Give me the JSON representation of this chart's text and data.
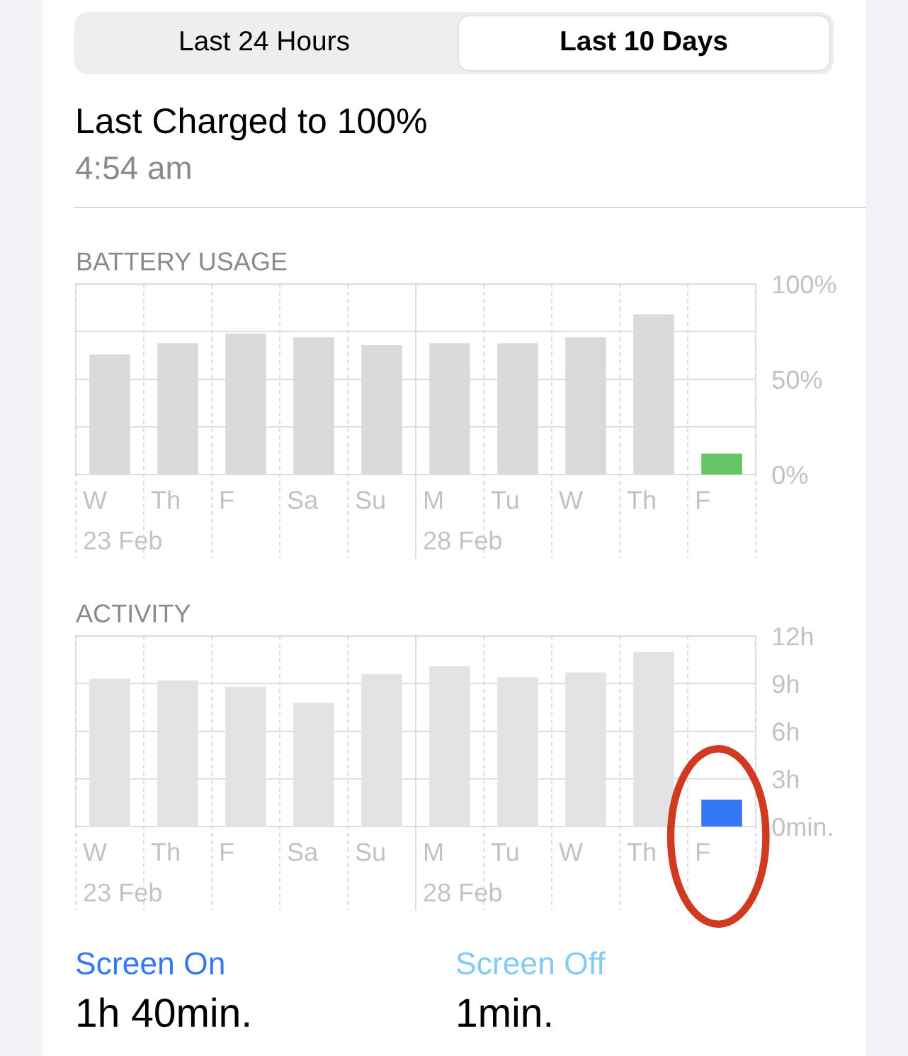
{
  "chart_data": [
    {
      "type": "other",
      "title": "Last Charged to 100%",
      "subtitle": "4:54 am",
      "annotations": [
        "Last 24 Hours",
        "Last 10 Days"
      ]
    },
    {
      "type": "bar",
      "title": "BATTERY USAGE",
      "categories": [
        "W\n23 Feb",
        "Th",
        "F",
        "Sa",
        "Su",
        "M\n28 Feb",
        "Tu",
        "W",
        "Th",
        "F"
      ],
      "values": [
        63,
        69,
        74,
        72,
        68,
        69,
        69,
        72,
        84,
        11
      ],
      "colors": [
        "#dadada",
        "#dadada",
        "#dadada",
        "#dadada",
        "#dadada",
        "#dadada",
        "#dadada",
        "#dadada",
        "#dadada",
        "#65c466"
      ],
      "ylim": [
        0,
        100
      ],
      "yticks": [
        {
          "value": 0,
          "label": "0%"
        },
        {
          "value": 25,
          "label": null
        },
        {
          "value": 50,
          "label": "50%"
        },
        {
          "value": 75,
          "label": null
        },
        {
          "value": 100,
          "label": "100%"
        }
      ],
      "grid": true
    },
    {
      "type": "bar",
      "title": "ACTIVITY",
      "categories": [
        "W\n23 Feb",
        "Th",
        "F",
        "Sa",
        "Su",
        "M\n28 Feb",
        "Tu",
        "W",
        "Th",
        "F"
      ],
      "values": [
        9.3,
        9.2,
        8.8,
        7.8,
        9.6,
        10.1,
        9.4,
        9.7,
        11,
        1.7
      ],
      "colors": [
        "#e3e3e3",
        "#e3e3e3",
        "#e3e3e3",
        "#e3e3e3",
        "#e3e3e3",
        "#e3e3e3",
        "#e3e3e3",
        "#e3e3e3",
        "#e3e3e3",
        "#3478f6"
      ],
      "ylim": [
        0,
        12
      ],
      "yticks": [
        {
          "value": 0,
          "label": "0min."
        },
        {
          "value": 3,
          "label": "3h"
        },
        {
          "value": 6,
          "label": "6h"
        },
        {
          "value": 9,
          "label": "9h"
        },
        {
          "value": 12,
          "label": "12h"
        }
      ],
      "grid": true
    },
    {
      "type": "other",
      "categories": [
        "Screen On",
        "Screen Off"
      ],
      "colors": [
        "#3478f6",
        "#80ccf5"
      ],
      "value_labels": [
        "1h 40min.",
        "1min."
      ]
    }
  ]
}
